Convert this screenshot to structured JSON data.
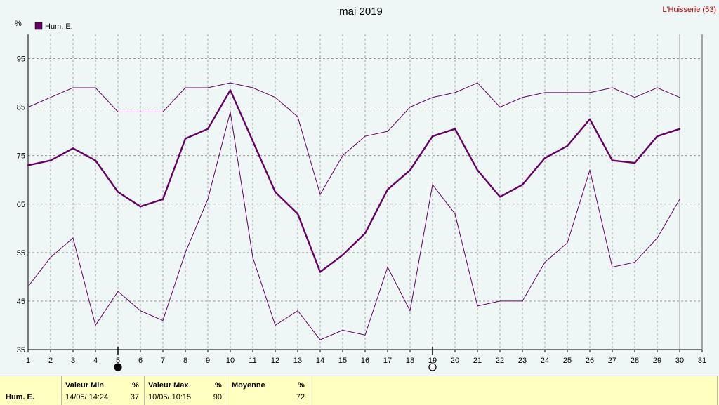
{
  "header": {
    "title": "mai 2019",
    "station": "L'Huisserie (53)",
    "unit_label": "%",
    "legend_label": "Hum. E."
  },
  "colors": {
    "series": "#660066",
    "grid": "#888888",
    "background": "#eef6f6",
    "station_text": "#c00000",
    "stats_background": "#ffffc0"
  },
  "markers": [
    {
      "day": 5,
      "icon": "new-moon-icon"
    },
    {
      "day": 19,
      "icon": "full-moon-icon"
    }
  ],
  "chart_data": {
    "type": "line",
    "title": "mai 2019",
    "ylabel": "%",
    "x": [
      1,
      2,
      3,
      4,
      5,
      6,
      7,
      8,
      9,
      10,
      11,
      12,
      13,
      14,
      15,
      16,
      17,
      18,
      19,
      20,
      21,
      22,
      23,
      24,
      25,
      26,
      27,
      28,
      29,
      30
    ],
    "xlim": [
      1,
      31
    ],
    "x_ticks": [
      1,
      2,
      3,
      4,
      5,
      6,
      7,
      8,
      9,
      10,
      11,
      12,
      13,
      14,
      15,
      16,
      17,
      18,
      19,
      20,
      21,
      22,
      23,
      24,
      25,
      26,
      27,
      28,
      29,
      30,
      31
    ],
    "ylim": [
      35,
      100
    ],
    "y_ticks": [
      35,
      45,
      55,
      65,
      75,
      85,
      95
    ],
    "grid": true,
    "legend_position": "top-left",
    "series": [
      {
        "name": "Hum. E.",
        "role": "average",
        "values": [
          73,
          74,
          76.5,
          74,
          67.5,
          64.5,
          66,
          78.5,
          80.5,
          88.5,
          78,
          67.5,
          63,
          51,
          54.5,
          59,
          68,
          72,
          79,
          80.5,
          72,
          66.5,
          69,
          74.5,
          77,
          82.5,
          74,
          73.5,
          79,
          80.5
        ]
      },
      {
        "role": "max",
        "values": [
          85,
          87,
          89,
          89,
          84,
          84,
          84,
          89,
          89,
          90,
          89,
          87,
          83,
          67,
          75,
          79,
          80,
          85,
          87,
          88,
          90,
          85,
          87,
          88,
          88,
          88,
          89,
          87,
          89,
          87
        ]
      },
      {
        "role": "min",
        "values": [
          48,
          54,
          58,
          40,
          47,
          43,
          41,
          55,
          66,
          84,
          54,
          40,
          43,
          37,
          39,
          38,
          52,
          43,
          69,
          63,
          44,
          45,
          45,
          53,
          57,
          72,
          52,
          53,
          58,
          66
        ]
      }
    ]
  },
  "stats": {
    "row_label": "Hum. E.",
    "min": {
      "header": "Valeur Min",
      "unit": "%",
      "date": "14/05/ 14:24",
      "value": "37"
    },
    "max": {
      "header": "Valeur Max",
      "unit": "%",
      "date": "10/05/ 10:15",
      "value": "90"
    },
    "mean": {
      "header": "Moyenne",
      "unit": "%",
      "value": "72"
    }
  }
}
